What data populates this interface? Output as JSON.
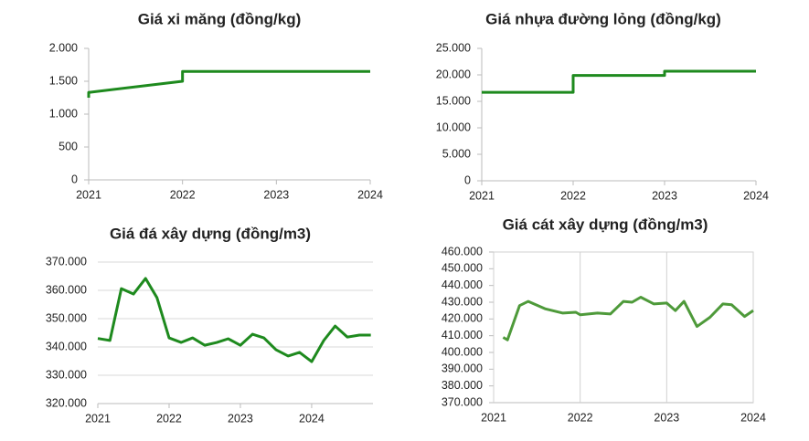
{
  "chart_data": [
    {
      "type": "line",
      "title": "Giá xi măng (đồng/kg)",
      "xlim": [
        2021,
        2024
      ],
      "xticks": [
        2021,
        2022,
        2023,
        2024
      ],
      "ylim": [
        0,
        2000
      ],
      "yticks": [
        0,
        500,
        {
          "value": 1000,
          "label": "1.000"
        },
        {
          "value": 1500,
          "label": "1.500"
        },
        {
          "value": 2000,
          "label": "2.000"
        }
      ],
      "series": [
        {
          "color": "#1e8a1e",
          "x": [
            2021,
            2021,
            2022,
            2022,
            2024
          ],
          "values": [
            1250,
            1330,
            1500,
            1650,
            1650
          ]
        }
      ]
    },
    {
      "type": "line",
      "title": "Giá nhựa đường lỏng (đồng/kg)",
      "xlim": [
        2021,
        2024
      ],
      "xticks": [
        2021,
        2022,
        2023,
        2024
      ],
      "ylim": [
        0,
        25000
      ],
      "yticks": [
        0,
        {
          "value": 5000,
          "label": "5.000"
        },
        {
          "value": 10000,
          "label": "10.000"
        },
        {
          "value": 15000,
          "label": "15.000"
        },
        {
          "value": 20000,
          "label": "20.000"
        },
        {
          "value": 25000,
          "label": "25.000"
        }
      ],
      "series": [
        {
          "color": "#1e8a1e",
          "x": [
            2021,
            2022,
            2022,
            2023,
            2023,
            2024
          ],
          "values": [
            16700,
            16700,
            19900,
            19900,
            20700,
            20700
          ]
        }
      ]
    },
    {
      "type": "line",
      "title": "Giá đá xây dựng (đồng/m3)",
      "xlim": [
        2021,
        2024.86
      ],
      "xticks": [
        2021,
        2022,
        2023,
        2024
      ],
      "ylim": [
        320000,
        370000
      ],
      "yticks": [
        {
          "value": 320000,
          "label": "320.000"
        },
        {
          "value": 330000,
          "label": "330.000"
        },
        {
          "value": 340000,
          "label": "340.000"
        },
        {
          "value": 350000,
          "label": "350.000"
        },
        {
          "value": 360000,
          "label": "360.000"
        },
        {
          "value": 370000,
          "label": "370.000"
        }
      ],
      "grid": true,
      "series": [
        {
          "color": "#1e8a1e",
          "x": [
            2021,
            2021.17,
            2021.33,
            2021.5,
            2021.67,
            2021.83,
            2022,
            2022.17,
            2022.33,
            2022.5,
            2022.67,
            2022.83,
            2023,
            2023.17,
            2023.33,
            2023.5,
            2023.67,
            2023.83,
            2024,
            2024.17,
            2024.33,
            2024.5,
            2024.67,
            2024.83
          ],
          "values": [
            343000,
            342300,
            360600,
            358700,
            364200,
            357400,
            343200,
            341600,
            343200,
            340600,
            341600,
            342900,
            340600,
            344500,
            343200,
            339000,
            336800,
            338100,
            334800,
            342300,
            347400,
            343500,
            344200,
            344200
          ]
        }
      ]
    },
    {
      "type": "line",
      "title": "Giá cát xây dựng (đồng/m3)",
      "xlim": [
        2021,
        2024
      ],
      "xticks": [
        2021,
        2022,
        2023,
        2024
      ],
      "ylim": [
        370000,
        460000
      ],
      "yticks": [
        {
          "value": 370000,
          "label": "370.000"
        },
        {
          "value": 380000,
          "label": "380.000"
        },
        {
          "value": 390000,
          "label": "390.000"
        },
        {
          "value": 400000,
          "label": "400.000"
        },
        {
          "value": 410000,
          "label": "410.000"
        },
        {
          "value": 420000,
          "label": "420.000"
        },
        {
          "value": 430000,
          "label": "430.000"
        },
        {
          "value": 440000,
          "label": "440.000"
        },
        {
          "value": 450000,
          "label": "450.000"
        },
        {
          "value": 460000,
          "label": "460.000"
        }
      ],
      "xgrid": true,
      "border": true,
      "series": [
        {
          "color": "#4e9a3a",
          "x": [
            2021.11,
            2021.16,
            2021.3,
            2021.4,
            2021.6,
            2021.8,
            2021.95,
            2022,
            2022.2,
            2022.35,
            2022.5,
            2022.6,
            2022.7,
            2022.85,
            2023,
            2023.1,
            2023.2,
            2023.35,
            2023.5,
            2023.65,
            2023.75,
            2023.9,
            2024
          ],
          "values": [
            409000,
            407500,
            428000,
            430500,
            426000,
            423500,
            424000,
            422500,
            423500,
            423000,
            430500,
            430000,
            433000,
            429000,
            429500,
            425000,
            430500,
            415500,
            421000,
            429000,
            428500,
            421500,
            425000
          ]
        }
      ]
    }
  ]
}
